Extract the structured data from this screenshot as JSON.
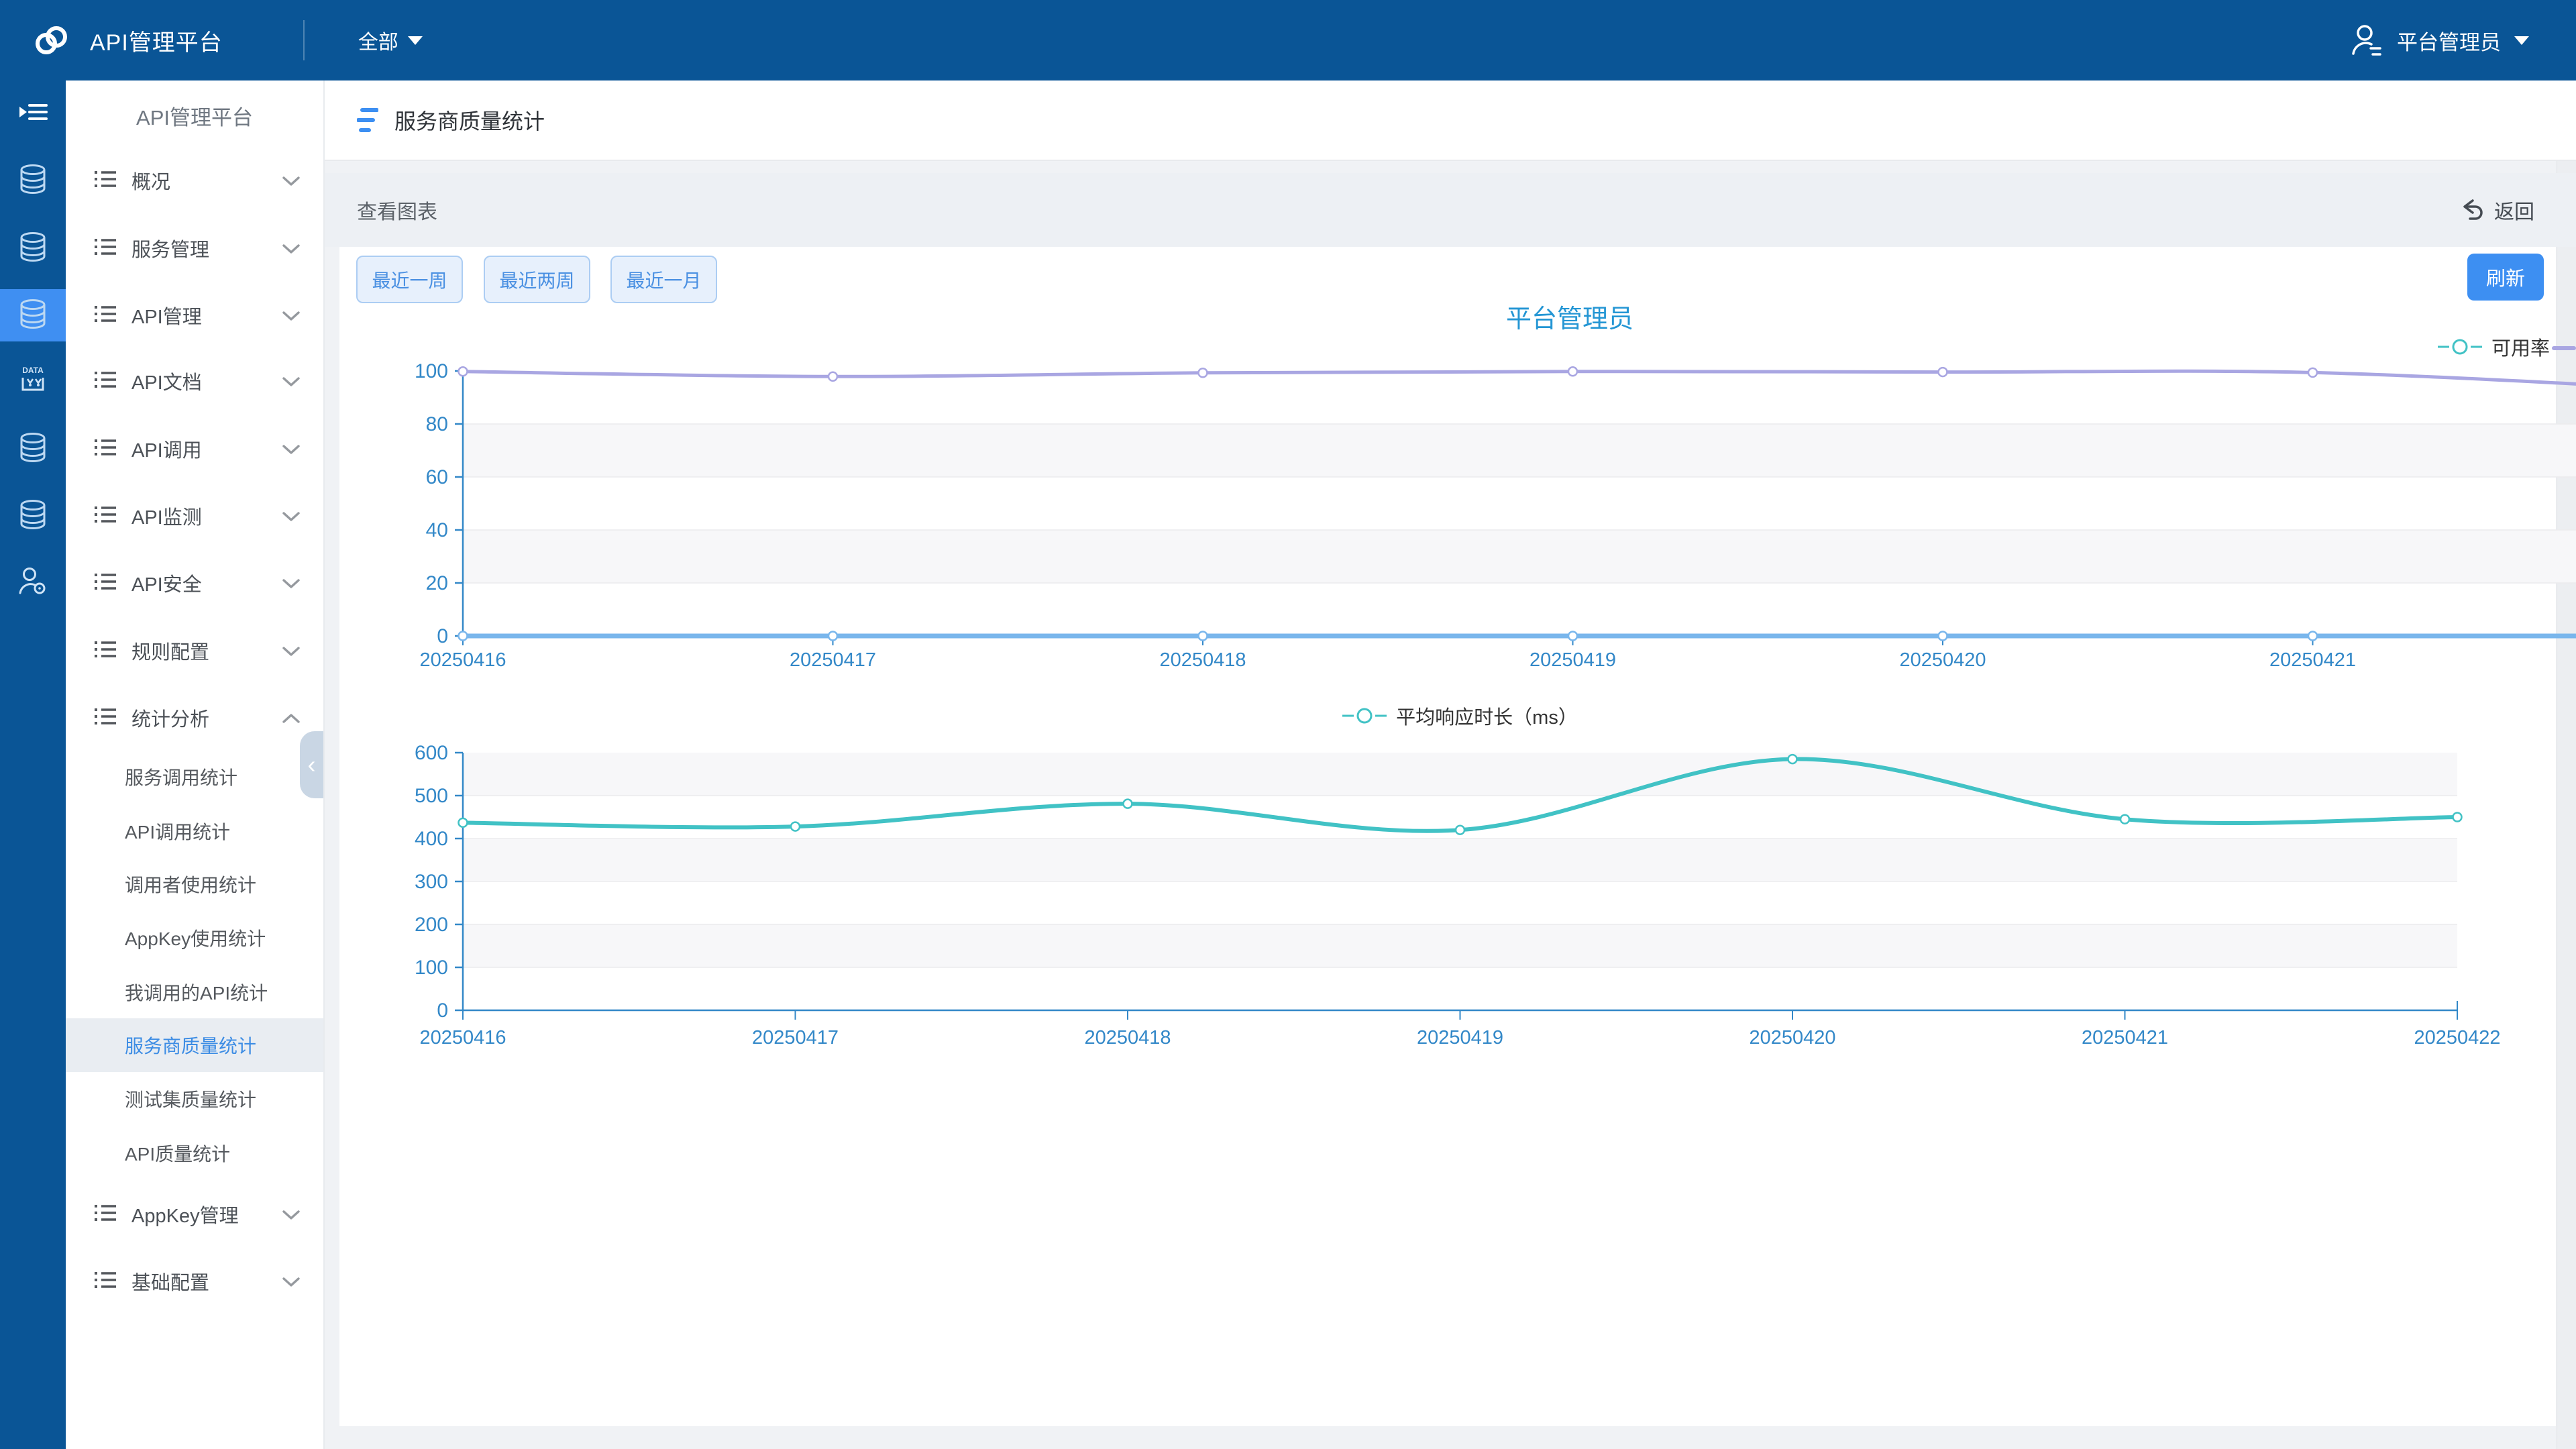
{
  "navbar": {
    "brand": "API管理平台",
    "scope_label": "全部",
    "user_name": "平台管理员"
  },
  "icon_rail": {
    "items": [
      {
        "icon": "menu-toggle-icon",
        "active": false
      },
      {
        "icon": "database-icon",
        "active": false
      },
      {
        "icon": "database-icon",
        "active": false
      },
      {
        "icon": "database-icon",
        "active": true
      },
      {
        "icon": "data-import-icon",
        "active": false
      },
      {
        "icon": "database-icon",
        "active": false
      },
      {
        "icon": "database-icon",
        "active": false
      },
      {
        "icon": "user-settings-icon",
        "active": false
      }
    ]
  },
  "sidebar": {
    "title": "API管理平台",
    "items": [
      {
        "label": "概况",
        "expanded": false
      },
      {
        "label": "服务管理",
        "expanded": false
      },
      {
        "label": "API管理",
        "expanded": false
      },
      {
        "label": "API文档",
        "expanded": false
      },
      {
        "label": "API调用",
        "expanded": false
      },
      {
        "label": "API监测",
        "expanded": false
      },
      {
        "label": "API安全",
        "expanded": false
      },
      {
        "label": "规则配置",
        "expanded": false
      },
      {
        "label": "统计分析",
        "expanded": true,
        "children": [
          {
            "label": "服务调用统计",
            "active": false
          },
          {
            "label": "API调用统计",
            "active": false
          },
          {
            "label": "调用者使用统计",
            "active": false
          },
          {
            "label": "AppKey使用统计",
            "active": false
          },
          {
            "label": "我调用的API统计",
            "active": false
          },
          {
            "label": "服务商质量统计",
            "active": true
          },
          {
            "label": "测试集质量统计",
            "active": false
          },
          {
            "label": "API质量统计",
            "active": false
          }
        ]
      },
      {
        "label": "AppKey管理",
        "expanded": false
      },
      {
        "label": "基础配置",
        "expanded": false
      }
    ]
  },
  "page": {
    "title": "服务商质量统计",
    "toolbar_left": "查看图表",
    "back_label": "返回",
    "range_buttons": [
      "最近一周",
      "最近两周",
      "最近一月"
    ],
    "refresh_label": "刷新"
  },
  "chart_data": [
    {
      "type": "line",
      "title": "平台管理员",
      "categories": [
        "20250416",
        "20250417",
        "20250418",
        "20250419",
        "20250420",
        "20250421"
      ],
      "series": [
        {
          "name": "可用率",
          "color": "#a9a6e2",
          "width": 5,
          "values": [
            99.8,
            97.9,
            99.3,
            99.8,
            99.6,
            99.4
          ],
          "next_offscreen_value": 93
        },
        {
          "name": "",
          "color": "#79b6ec",
          "width": 7,
          "values": [
            0,
            0,
            0,
            0,
            0,
            0
          ],
          "next_offscreen_value": 0
        }
      ],
      "ylim": [
        0,
        100
      ],
      "y_ticks": [
        0,
        20,
        40,
        60,
        80,
        100
      ],
      "legend": [
        {
          "label": "可用率",
          "color": "#41c2c5"
        }
      ],
      "legend_position": "top-right",
      "axis_color": "#3388c8",
      "grid": "alternating-split-area",
      "note": "chart wider than viewport, line continues past right edge"
    },
    {
      "type": "line",
      "smooth": true,
      "categories": [
        "20250416",
        "20250417",
        "20250418",
        "20250419",
        "20250420",
        "20250421",
        "20250422"
      ],
      "series": [
        {
          "name": "平均响应时长（ms）",
          "color": "#41c2c5",
          "width": 6,
          "values": [
            437,
            428,
            481,
            420,
            585,
            445,
            450
          ]
        }
      ],
      "ylim": [
        0,
        600
      ],
      "y_ticks": [
        0,
        100,
        200,
        300,
        400,
        500,
        600
      ],
      "legend": [
        {
          "label": "平均响应时长（ms）",
          "color": "#41c2c5"
        }
      ],
      "legend_position": "top-center",
      "axis_color": "#3388c8",
      "grid": "alternating-split-area"
    }
  ],
  "colors": {
    "navbar_bg": "#0a5596",
    "rail_active_bg": "#3f8ff2",
    "accent_blue": "#3d8ff2",
    "axis_blue": "#3388c8",
    "teal": "#41c2c5",
    "purple_line": "#a9a6e2",
    "zero_line_blue": "#79b6ec",
    "chart_title_blue": "#2496d4",
    "active_item_text": "#3c8ce4",
    "band_gray": "#f7f7f9",
    "page_bg": "#f0f2f5"
  }
}
